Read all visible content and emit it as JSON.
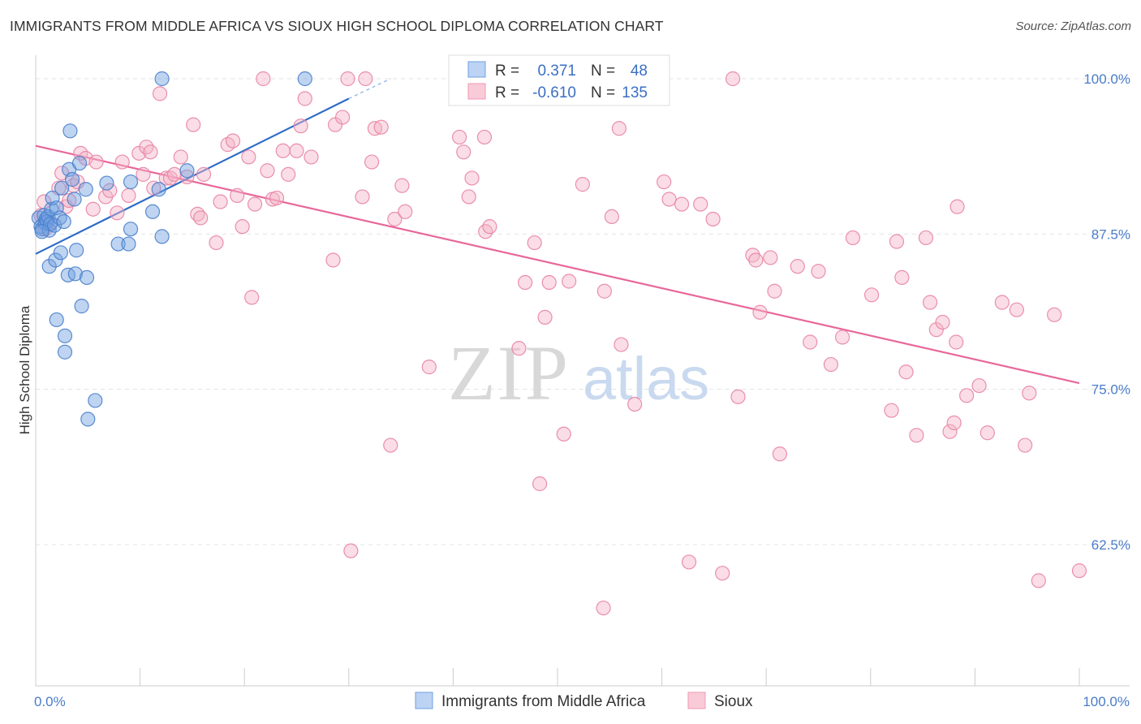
{
  "title": "IMMIGRANTS FROM MIDDLE AFRICA VS SIOUX HIGH SCHOOL DIPLOMA CORRELATION CHART",
  "source": "Source: ZipAtlas.com",
  "watermark": {
    "zip": "ZIP",
    "atlas": "atlas"
  },
  "legend": {
    "r_label": "R =",
    "n_label": "N =",
    "rows": [
      {
        "r": "0.371",
        "n": "48",
        "color": "#6fa0e0"
      },
      {
        "r": "-0.610",
        "n": "135",
        "color": "#f098b4"
      }
    ]
  },
  "chart_data": {
    "type": "scatter",
    "title": "IMMIGRANTS FROM MIDDLE AFRICA VS SIOUX HIGH SCHOOL DIPLOMA CORRELATION CHART",
    "xlabel": "",
    "ylabel": "High School Diploma",
    "xlim": [
      0,
      100
    ],
    "ylim": [
      51.5,
      102
    ],
    "x_tick_labels": [
      "0.0%",
      "100.0%"
    ],
    "y_ticks": [
      {
        "value": 100.0,
        "label": "100.0%"
      },
      {
        "value": 87.5,
        "label": "87.5%"
      },
      {
        "value": 75.0,
        "label": "75.0%"
      },
      {
        "value": 62.5,
        "label": "62.5%"
      }
    ],
    "grid": "horizontal dashed",
    "legend_position": "top-center",
    "series": [
      {
        "name": "Immigrants from Middle Africa",
        "color": "#6fa0e0",
        "stroke": "#4a80cc",
        "trend": {
          "x0": 0.0,
          "y0": 85.9,
          "x1": 30.0,
          "y1": 98.4,
          "dash_to_x": 34.0,
          "dash_to_y": 100.0
        },
        "points": [
          [
            0.3,
            88.8
          ],
          [
            0.5,
            88.1
          ],
          [
            0.6,
            87.9
          ],
          [
            0.8,
            89.0
          ],
          [
            0.9,
            88.4
          ],
          [
            1.0,
            88.7
          ],
          [
            1.1,
            88.5
          ],
          [
            1.2,
            88.9
          ],
          [
            1.3,
            87.8
          ],
          [
            1.4,
            88.3
          ],
          [
            1.3,
            84.9
          ],
          [
            1.5,
            89.5
          ],
          [
            1.6,
            90.4
          ],
          [
            1.8,
            88.2
          ],
          [
            1.9,
            85.4
          ],
          [
            2.0,
            89.6
          ],
          [
            2.0,
            80.6
          ],
          [
            2.3,
            88.8
          ],
          [
            2.4,
            86.0
          ],
          [
            2.5,
            91.2
          ],
          [
            2.7,
            88.5
          ],
          [
            2.8,
            79.3
          ],
          [
            2.8,
            78.0
          ],
          [
            3.1,
            84.2
          ],
          [
            3.2,
            92.7
          ],
          [
            3.3,
            95.8
          ],
          [
            3.5,
            91.9
          ],
          [
            3.7,
            90.3
          ],
          [
            3.8,
            84.3
          ],
          [
            3.9,
            86.2
          ],
          [
            4.2,
            93.2
          ],
          [
            4.4,
            81.7
          ],
          [
            4.8,
            91.1
          ],
          [
            4.9,
            84.0
          ],
          [
            5.0,
            72.6
          ],
          [
            5.7,
            74.1
          ],
          [
            6.8,
            91.6
          ],
          [
            7.9,
            86.7
          ],
          [
            8.9,
            86.7
          ],
          [
            9.1,
            87.9
          ],
          [
            9.1,
            91.7
          ],
          [
            11.2,
            89.3
          ],
          [
            11.8,
            91.1
          ],
          [
            12.1,
            87.3
          ],
          [
            12.1,
            100.0
          ],
          [
            14.5,
            92.6
          ],
          [
            25.8,
            100.0
          ],
          [
            0.6,
            87.7
          ]
        ]
      },
      {
        "name": "Sioux",
        "color": "#f5b3c7",
        "stroke": "#e884a4",
        "trend": {
          "x0": 0.0,
          "y0": 94.6,
          "x1": 100.0,
          "y1": 75.5
        },
        "points": [
          [
            0.5,
            89.0
          ],
          [
            0.8,
            90.1
          ],
          [
            1.4,
            88.4
          ],
          [
            2.2,
            91.2
          ],
          [
            2.5,
            92.4
          ],
          [
            2.9,
            89.7
          ],
          [
            3.6,
            91.4
          ],
          [
            4.0,
            91.7
          ],
          [
            4.3,
            94.0
          ],
          [
            4.8,
            93.6
          ],
          [
            5.5,
            89.5
          ],
          [
            5.8,
            93.3
          ],
          [
            6.7,
            90.5
          ],
          [
            7.1,
            91.0
          ],
          [
            7.8,
            89.2
          ],
          [
            8.3,
            93.3
          ],
          [
            8.9,
            90.6
          ],
          [
            9.9,
            94.0
          ],
          [
            10.3,
            92.3
          ],
          [
            10.6,
            94.5
          ],
          [
            11.0,
            94.1
          ],
          [
            11.3,
            91.2
          ],
          [
            11.9,
            98.8
          ],
          [
            12.5,
            92.0
          ],
          [
            12.9,
            92.0
          ],
          [
            13.3,
            92.3
          ],
          [
            13.9,
            93.7
          ],
          [
            14.5,
            92.1
          ],
          [
            15.1,
            96.3
          ],
          [
            15.5,
            89.1
          ],
          [
            15.8,
            88.8
          ],
          [
            16.1,
            92.3
          ],
          [
            17.3,
            86.8
          ],
          [
            17.7,
            90.1
          ],
          [
            18.4,
            94.7
          ],
          [
            18.9,
            95.0
          ],
          [
            19.3,
            90.6
          ],
          [
            19.8,
            88.1
          ],
          [
            20.4,
            93.7
          ],
          [
            20.7,
            82.4
          ],
          [
            21.0,
            89.9
          ],
          [
            21.8,
            100.0
          ],
          [
            22.2,
            92.6
          ],
          [
            22.7,
            90.3
          ],
          [
            23.1,
            90.4
          ],
          [
            23.7,
            94.2
          ],
          [
            24.2,
            92.3
          ],
          [
            25.0,
            94.2
          ],
          [
            25.4,
            96.2
          ],
          [
            25.8,
            98.4
          ],
          [
            26.4,
            93.7
          ],
          [
            28.5,
            85.4
          ],
          [
            28.7,
            96.3
          ],
          [
            29.4,
            96.9
          ],
          [
            29.9,
            100.0
          ],
          [
            30.2,
            62.0
          ],
          [
            31.3,
            90.5
          ],
          [
            31.6,
            100.0
          ],
          [
            32.2,
            93.3
          ],
          [
            32.5,
            96.0
          ],
          [
            33.1,
            96.1
          ],
          [
            34.0,
            70.5
          ],
          [
            34.4,
            88.7
          ],
          [
            35.1,
            91.4
          ],
          [
            35.4,
            89.3
          ],
          [
            37.7,
            76.8
          ],
          [
            40.6,
            95.3
          ],
          [
            41.0,
            94.1
          ],
          [
            41.5,
            90.5
          ],
          [
            41.8,
            92.0
          ],
          [
            43.0,
            95.3
          ],
          [
            43.1,
            87.7
          ],
          [
            43.5,
            88.1
          ],
          [
            46.3,
            78.3
          ],
          [
            46.9,
            83.6
          ],
          [
            47.8,
            86.8
          ],
          [
            48.3,
            67.4
          ],
          [
            48.8,
            80.8
          ],
          [
            49.2,
            83.6
          ],
          [
            50.6,
            71.4
          ],
          [
            51.1,
            83.7
          ],
          [
            52.4,
            91.5
          ],
          [
            54.4,
            57.4
          ],
          [
            54.5,
            82.9
          ],
          [
            55.2,
            88.9
          ],
          [
            55.9,
            96.0
          ],
          [
            56.1,
            78.6
          ],
          [
            57.4,
            73.8
          ],
          [
            60.2,
            91.7
          ],
          [
            60.7,
            90.3
          ],
          [
            61.9,
            89.9
          ],
          [
            62.6,
            61.1
          ],
          [
            63.7,
            89.9
          ],
          [
            64.9,
            88.7
          ],
          [
            65.8,
            60.2
          ],
          [
            66.8,
            100.0
          ],
          [
            67.3,
            74.4
          ],
          [
            68.7,
            85.8
          ],
          [
            69.0,
            85.4
          ],
          [
            69.4,
            81.2
          ],
          [
            70.4,
            85.6
          ],
          [
            70.8,
            82.9
          ],
          [
            71.3,
            69.8
          ],
          [
            73.0,
            84.9
          ],
          [
            74.2,
            78.8
          ],
          [
            75.0,
            84.5
          ],
          [
            76.2,
            77.0
          ],
          [
            77.3,
            79.2
          ],
          [
            78.3,
            87.2
          ],
          [
            80.1,
            82.6
          ],
          [
            82.0,
            73.3
          ],
          [
            82.5,
            86.9
          ],
          [
            83.0,
            84.0
          ],
          [
            83.4,
            76.4
          ],
          [
            84.4,
            71.3
          ],
          [
            85.3,
            87.2
          ],
          [
            85.7,
            82.0
          ],
          [
            86.3,
            79.8
          ],
          [
            86.9,
            80.4
          ],
          [
            87.6,
            71.6
          ],
          [
            88.0,
            72.3
          ],
          [
            88.2,
            78.8
          ],
          [
            88.3,
            89.7
          ],
          [
            89.2,
            74.5
          ],
          [
            90.4,
            75.3
          ],
          [
            91.2,
            71.5
          ],
          [
            92.6,
            82.0
          ],
          [
            94.0,
            81.4
          ],
          [
            94.8,
            70.5
          ],
          [
            95.2,
            74.7
          ],
          [
            96.1,
            59.6
          ],
          [
            97.6,
            81.0
          ],
          [
            100.0,
            60.4
          ],
          [
            0.9,
            87.9
          ],
          [
            3.2,
            90.2
          ]
        ]
      }
    ]
  },
  "bottom_legend": [
    {
      "label": "Immigrants from Middle Africa",
      "color": "#bcd3f3",
      "stroke": "#6fa0e0"
    },
    {
      "label": "Sioux",
      "color": "#f9cbd8",
      "stroke": "#f098b4"
    }
  ]
}
